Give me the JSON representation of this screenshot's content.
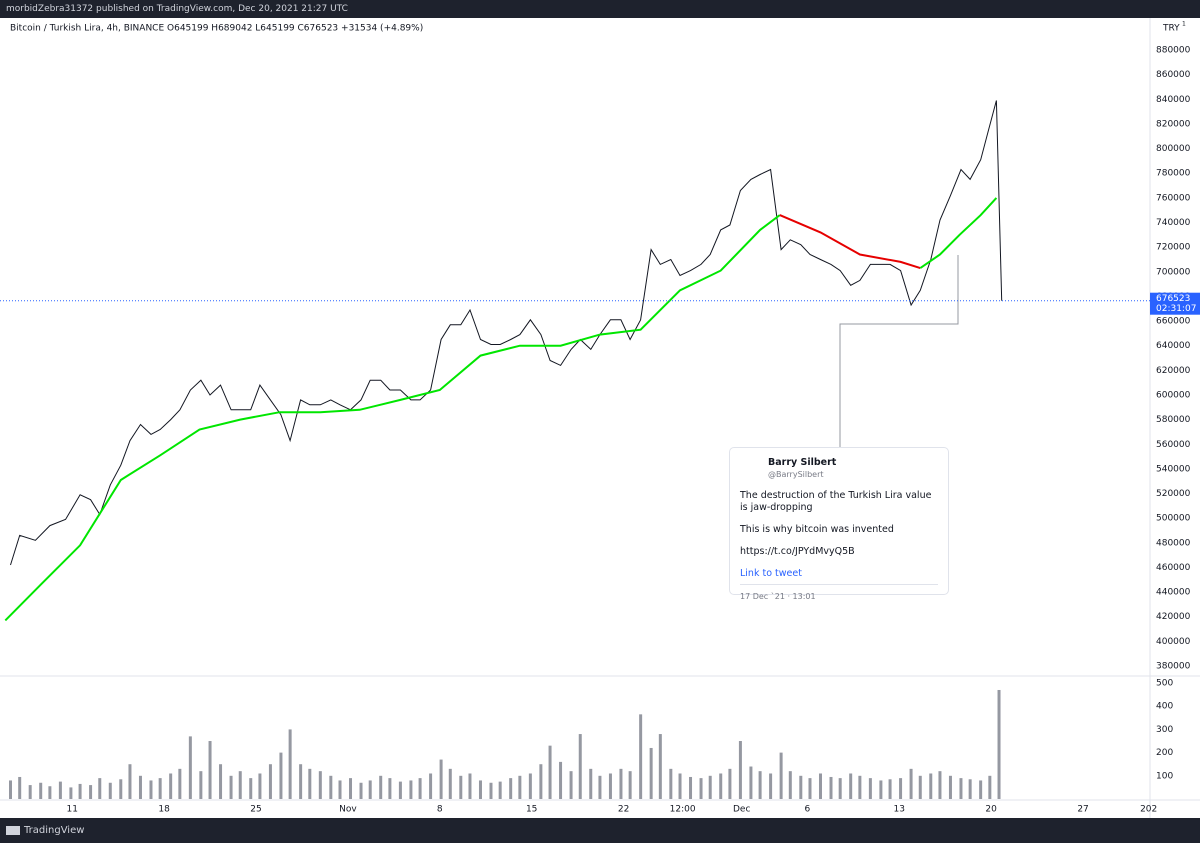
{
  "header": {
    "text": "morbidZebra31372 published on TradingView.com, Dec 20, 2021 21:27 UTC"
  },
  "footer": {
    "brand": "TradingView"
  },
  "tweet": {
    "name": "Barry Silbert",
    "handle": "@BarrySilbert",
    "text": "The destruction of the Turkish Lira value is jaw-dropping",
    "text2": "This is why bitcoin was invented",
    "url": "https://t.co/JPYdMvyQ5B",
    "link": "Link to tweet",
    "date": "17 Dec `21 · 13:01"
  },
  "chart_data": [
    {
      "type": "line",
      "title": "Bitcoin / Turkish Lira, 4h, BINANCE  O645199 H689042 L645199 C676523 +31534 (+4.89%)",
      "currency": "TRY",
      "currency_note": "1",
      "countdown": "02:31:07",
      "grid": false,
      "xlim": [
        4.5,
        92.1
      ],
      "ylim": [
        372700,
        906000
      ],
      "yticks": [
        380000,
        400000,
        420000,
        440000,
        460000,
        480000,
        500000,
        520000,
        540000,
        560000,
        580000,
        600000,
        620000,
        640000,
        660000,
        680000,
        700000,
        720000,
        740000,
        760000,
        780000,
        800000,
        820000,
        840000,
        860000,
        880000
      ],
      "series": [
        {
          "color": "#131722",
          "x": [
            5.3,
            6.0,
            7.2,
            8.3,
            9.5,
            10.6,
            11.4,
            12.1,
            12.9,
            13.7,
            14.4,
            15.2,
            16.0,
            16.7,
            17.5,
            18.2,
            19.0,
            19.8,
            20.5,
            21.3,
            22.1,
            22.8,
            23.6,
            24.3,
            25.1,
            25.9,
            26.6,
            27.4,
            28.1,
            28.9,
            29.7,
            30.4,
            31.2,
            32.0,
            32.7,
            33.5,
            34.2,
            35.0,
            35.8,
            36.5,
            37.3,
            38.1,
            38.8,
            39.6,
            40.3,
            41.1,
            41.9,
            42.6,
            43.4,
            44.1,
            44.9,
            45.7,
            46.4,
            47.2,
            48.0,
            48.7,
            49.5,
            50.2,
            51.0,
            51.8,
            52.5,
            53.3,
            54.1,
            54.8,
            55.6,
            56.3,
            57.1,
            57.9,
            58.6,
            59.4,
            60.1,
            60.9,
            61.7,
            62.4,
            63.2,
            64.0,
            64.7,
            65.5,
            66.2,
            67.0,
            67.8,
            68.5,
            69.3,
            70.0,
            70.8,
            71.6,
            72.3,
            73.1,
            73.9,
            74.6,
            75.4,
            76.1,
            76.9,
            77.7,
            78.4,
            79.2,
            79.9,
            80.4,
            80.8
          ],
          "values": [
            462000,
            486000,
            482000,
            494000,
            499000,
            519000,
            515000,
            503000,
            527000,
            543000,
            563000,
            576000,
            568000,
            572000,
            580000,
            588000,
            604000,
            612000,
            600000,
            608000,
            588000,
            588000,
            588000,
            608000,
            596000,
            584000,
            563000,
            596000,
            592000,
            592000,
            596000,
            592000,
            588000,
            596000,
            612000,
            612000,
            604000,
            604000,
            596000,
            596000,
            604000,
            645000,
            657000,
            657000,
            669000,
            645000,
            641000,
            641000,
            645000,
            649000,
            661000,
            649000,
            628000,
            624000,
            637000,
            645000,
            637000,
            649000,
            661000,
            661000,
            645000,
            661000,
            718000,
            706000,
            710000,
            697000,
            701000,
            706000,
            714000,
            734000,
            738000,
            766000,
            775000,
            779000,
            783000,
            718000,
            726000,
            722000,
            714000,
            710000,
            706000,
            701000,
            689000,
            693000,
            706000,
            706000,
            706000,
            701000,
            673000,
            685000,
            710000,
            742000,
            762000,
            783000,
            775000,
            791000,
            819000,
            839000,
            676523
          ]
        },
        {
          "color": "#00e600",
          "x": [
            4.9,
            7.6,
            10.6,
            13.7,
            16.7,
            19.7,
            22.8,
            25.8,
            28.9,
            31.9,
            35.0,
            38.0,
            41.1,
            44.1,
            47.2,
            50.2,
            53.3,
            56.3,
            59.4,
            62.4,
            63.9
          ],
          "values": [
            417000,
            446000,
            478000,
            531000,
            551000,
            572000,
            580000,
            586000,
            586000,
            588000,
            596000,
            604000,
            632000,
            640000,
            640000,
            649000,
            653000,
            685000,
            701000,
            734000,
            746000
          ]
        },
        {
          "color": "#e60000",
          "x": [
            63.9,
            67.0,
            70.0,
            73.1,
            74.6
          ],
          "values": [
            746000,
            732000,
            714000,
            708000,
            703000
          ]
        },
        {
          "color": "#00e600",
          "x": [
            74.6,
            76.1,
            77.6,
            79.2,
            80.4
          ],
          "values": [
            703000,
            714000,
            730000,
            746000,
            760000
          ]
        }
      ]
    },
    {
      "type": "bar",
      "color": "#9598a1",
      "xlim": [
        4.5,
        92.1
      ],
      "ylim": [
        0,
        526
      ],
      "yticks": [
        100,
        200,
        300,
        400,
        500
      ],
      "xticks": [
        {
          "value": 10,
          "label": "11"
        },
        {
          "value": 17,
          "label": "18"
        },
        {
          "value": 24,
          "label": "25"
        },
        {
          "value": 31,
          "label": "Nov"
        },
        {
          "value": 38,
          "label": "8"
        },
        {
          "value": 45,
          "label": "15"
        },
        {
          "value": 52,
          "label": "22"
        },
        {
          "value": 56.5,
          "label": "12:00"
        },
        {
          "value": 61,
          "label": "Dec"
        },
        {
          "value": 66,
          "label": "6"
        },
        {
          "value": 73,
          "label": "13"
        },
        {
          "value": 80,
          "label": "20"
        },
        {
          "value": 87,
          "label": "27"
        },
        {
          "value": 92,
          "label": "202"
        }
      ],
      "x": [
        5.3,
        6.0,
        6.8,
        7.6,
        8.3,
        9.1,
        9.9,
        10.6,
        11.4,
        12.1,
        12.9,
        13.7,
        14.4,
        15.2,
        16.0,
        16.7,
        17.5,
        18.2,
        19.0,
        19.8,
        20.5,
        21.3,
        22.1,
        22.8,
        23.6,
        24.3,
        25.1,
        25.9,
        26.6,
        27.4,
        28.1,
        28.9,
        29.7,
        30.4,
        31.2,
        32.0,
        32.7,
        33.5,
        34.2,
        35.0,
        35.8,
        36.5,
        37.3,
        38.1,
        38.8,
        39.6,
        40.3,
        41.1,
        41.9,
        42.6,
        43.4,
        44.1,
        44.9,
        45.7,
        46.4,
        47.2,
        48.0,
        48.7,
        49.5,
        50.2,
        51.0,
        51.8,
        52.5,
        53.3,
        54.1,
        54.8,
        55.6,
        56.3,
        57.1,
        57.9,
        58.6,
        59.4,
        60.1,
        60.9,
        61.7,
        62.4,
        63.2,
        64.0,
        64.7,
        65.5,
        66.2,
        67.0,
        67.8,
        68.5,
        69.3,
        70.0,
        70.8,
        71.6,
        72.3,
        73.1,
        73.9,
        74.6,
        75.4,
        76.1,
        76.9,
        77.7,
        78.4,
        79.2,
        79.9,
        80.6
      ],
      "values": [
        80,
        95,
        60,
        70,
        55,
        75,
        50,
        65,
        60,
        90,
        70,
        85,
        150,
        100,
        80,
        90,
        110,
        130,
        270,
        120,
        250,
        150,
        100,
        120,
        90,
        110,
        150,
        200,
        300,
        150,
        130,
        120,
        100,
        80,
        90,
        70,
        80,
        100,
        90,
        75,
        80,
        90,
        110,
        170,
        130,
        100,
        110,
        80,
        70,
        75,
        90,
        100,
        110,
        150,
        230,
        160,
        120,
        280,
        130,
        100,
        110,
        130,
        120,
        365,
        220,
        280,
        130,
        110,
        95,
        90,
        100,
        110,
        130,
        250,
        140,
        120,
        110,
        200,
        120,
        100,
        90,
        110,
        95,
        90,
        110,
        100,
        90,
        80,
        85,
        90,
        130,
        100,
        110,
        120,
        100,
        90,
        85,
        80,
        100,
        470
      ]
    }
  ]
}
